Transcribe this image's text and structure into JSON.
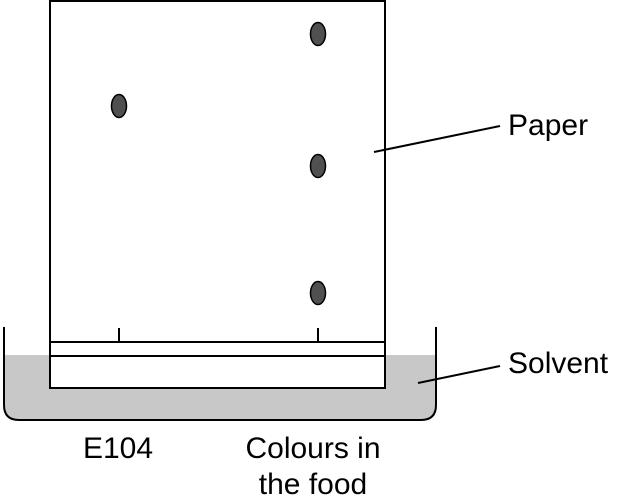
{
  "labels": {
    "paper": "Paper",
    "solvent": "Solvent",
    "sample_left": "E104",
    "sample_right_line1": "Colours in",
    "sample_right_line2": "the food"
  },
  "colors": {
    "solvent_fill": "#c8c8c8",
    "spot_fill": "#505050",
    "outline": "#000000",
    "paper_fill": "#ffffff"
  }
}
